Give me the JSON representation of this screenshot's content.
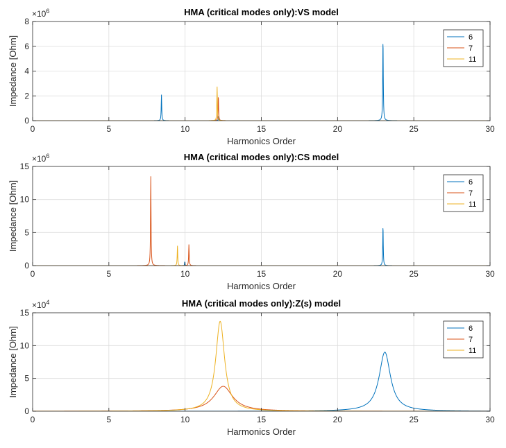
{
  "figure": {
    "background": "#ffffff",
    "axes_background": "#ffffff"
  },
  "series_colors": {
    "6": "#0072BD",
    "7": "#D95319",
    "11": "#EDB120"
  },
  "chart_data": [
    {
      "type": "line",
      "title": "HMA (critical modes only):VS model",
      "xlabel": "Harmonics Order",
      "ylabel": "Impedance [Ohm]",
      "xlim": [
        0,
        30
      ],
      "ylim": [
        0,
        8000000
      ],
      "x_ticks": [
        0,
        5,
        10,
        15,
        20,
        25,
        30
      ],
      "x_tick_labels": [
        "0",
        "5",
        "10",
        "15",
        "20",
        "25",
        "30"
      ],
      "y_ticks": [
        0,
        2000000,
        4000000,
        6000000,
        8000000
      ],
      "y_tick_labels": [
        "0",
        "2",
        "4",
        "6",
        "8"
      ],
      "y_exponent": {
        "base": "×10",
        "power": "6"
      },
      "grid": true,
      "legend_position": "top-right",
      "series": [
        {
          "name": "6",
          "color": "#0072BD",
          "peaks": [
            {
              "x": 8.45,
              "y": 2100000,
              "w": 0.02
            },
            {
              "x": 12.2,
              "y": 350000,
              "w": 0.02
            },
            {
              "x": 22.98,
              "y": 6500000,
              "w": 0.022
            }
          ]
        },
        {
          "name": "7",
          "color": "#D95319",
          "peaks": [
            {
              "x": 12.18,
              "y": 2000000,
              "w": 0.02
            }
          ]
        },
        {
          "name": "11",
          "color": "#EDB120",
          "peaks": [
            {
              "x": 12.1,
              "y": 2750000,
              "w": 0.02
            }
          ]
        }
      ]
    },
    {
      "type": "line",
      "title": "HMA (critical modes only):CS model",
      "xlabel": "Harmonics Order",
      "ylabel": "Impedance [Ohm]",
      "xlim": [
        0,
        30
      ],
      "ylim": [
        0,
        15000000
      ],
      "x_ticks": [
        0,
        5,
        10,
        15,
        20,
        25,
        30
      ],
      "x_tick_labels": [
        "0",
        "5",
        "10",
        "15",
        "20",
        "25",
        "30"
      ],
      "y_ticks": [
        0,
        5000000,
        10000000,
        15000000
      ],
      "y_tick_labels": [
        "0",
        "5",
        "10",
        "15"
      ],
      "y_exponent": {
        "base": "×10",
        "power": "6"
      },
      "grid": true,
      "legend_position": "top-right",
      "series": [
        {
          "name": "6",
          "color": "#0072BD",
          "peaks": [
            {
              "x": 9.98,
              "y": 650000,
              "w": 0.015
            },
            {
              "x": 22.98,
              "y": 6000000,
              "w": 0.02
            }
          ]
        },
        {
          "name": "7",
          "color": "#D95319",
          "peaks": [
            {
              "x": 7.75,
              "y": 13500000,
              "w": 0.02
            },
            {
              "x": 10.25,
              "y": 3200000,
              "w": 0.02
            }
          ]
        },
        {
          "name": "11",
          "color": "#EDB120",
          "peaks": [
            {
              "x": 9.5,
              "y": 3000000,
              "w": 0.02
            }
          ]
        }
      ]
    },
    {
      "type": "line",
      "title": "HMA (critical modes only):Z(s) model",
      "xlabel": "Harmonics Order",
      "ylabel": "Impedance [Ohm]",
      "xlim": [
        0,
        30
      ],
      "ylim": [
        0,
        150000
      ],
      "x_ticks": [
        0,
        5,
        10,
        15,
        20,
        25,
        30
      ],
      "x_tick_labels": [
        "0",
        "5",
        "10",
        "15",
        "20",
        "25",
        "30"
      ],
      "y_ticks": [
        0,
        50000,
        100000,
        150000
      ],
      "y_tick_labels": [
        "0",
        "5",
        "10",
        "15"
      ],
      "y_exponent": {
        "base": "×10",
        "power": "4"
      },
      "grid": true,
      "legend_position": "top-right",
      "series": [
        {
          "name": "6",
          "color": "#0072BD",
          "peaks": [
            {
              "x": 23.1,
              "y": 90000,
              "w": 0.45
            }
          ]
        },
        {
          "name": "7",
          "color": "#D95319",
          "peaks": [
            {
              "x": 12.5,
              "y": 38000,
              "w": 0.75
            }
          ]
        },
        {
          "name": "11",
          "color": "#EDB120",
          "peaks": [
            {
              "x": 12.3,
              "y": 137000,
              "w": 0.35
            }
          ]
        }
      ]
    }
  ]
}
